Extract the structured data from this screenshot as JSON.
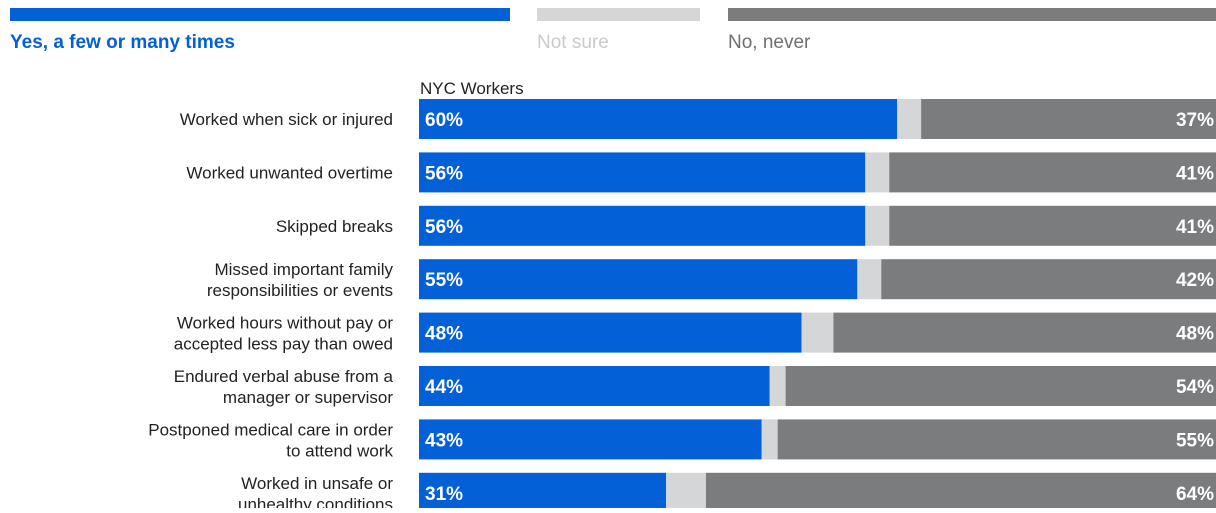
{
  "chart_data": {
    "type": "bar",
    "stacked": true,
    "orientation": "horizontal",
    "title": "",
    "xlabel": "",
    "ylabel": "",
    "xlim": [
      0,
      100
    ],
    "grid": false,
    "legend_position": "top",
    "group_label": "NYC Workers",
    "categories": [
      [
        "Worked when sick or injured"
      ],
      [
        "Worked unwanted overtime"
      ],
      [
        "Skipped breaks"
      ],
      [
        "Missed important family",
        "responsibilities or events"
      ],
      [
        "Worked hours without pay or",
        "accepted less pay than owed"
      ],
      [
        "Endured verbal abuse from a",
        "manager or supervisor"
      ],
      [
        "Postponed medical care in order",
        "to attend work"
      ],
      [
        "Worked in unsafe or",
        "unhealthy conditions"
      ]
    ],
    "series": [
      {
        "name": "Yes, a few or many times",
        "color": "#0360d6",
        "values": [
          60,
          56,
          56,
          55,
          48,
          44,
          43,
          31
        ],
        "labeled": true
      },
      {
        "name": "Not sure",
        "color": "#d4d6d8",
        "values": [
          3,
          3,
          3,
          3,
          4,
          2,
          2,
          5
        ],
        "labeled": false
      },
      {
        "name": "No, never",
        "color": "#7a7c7e",
        "values": [
          37,
          41,
          41,
          42,
          48,
          54,
          55,
          64
        ],
        "labeled": true
      }
    ],
    "value_suffix": "%",
    "legend_text_colors": [
      "#0360d6",
      "#c9cacc",
      "#6d6f71"
    ]
  }
}
